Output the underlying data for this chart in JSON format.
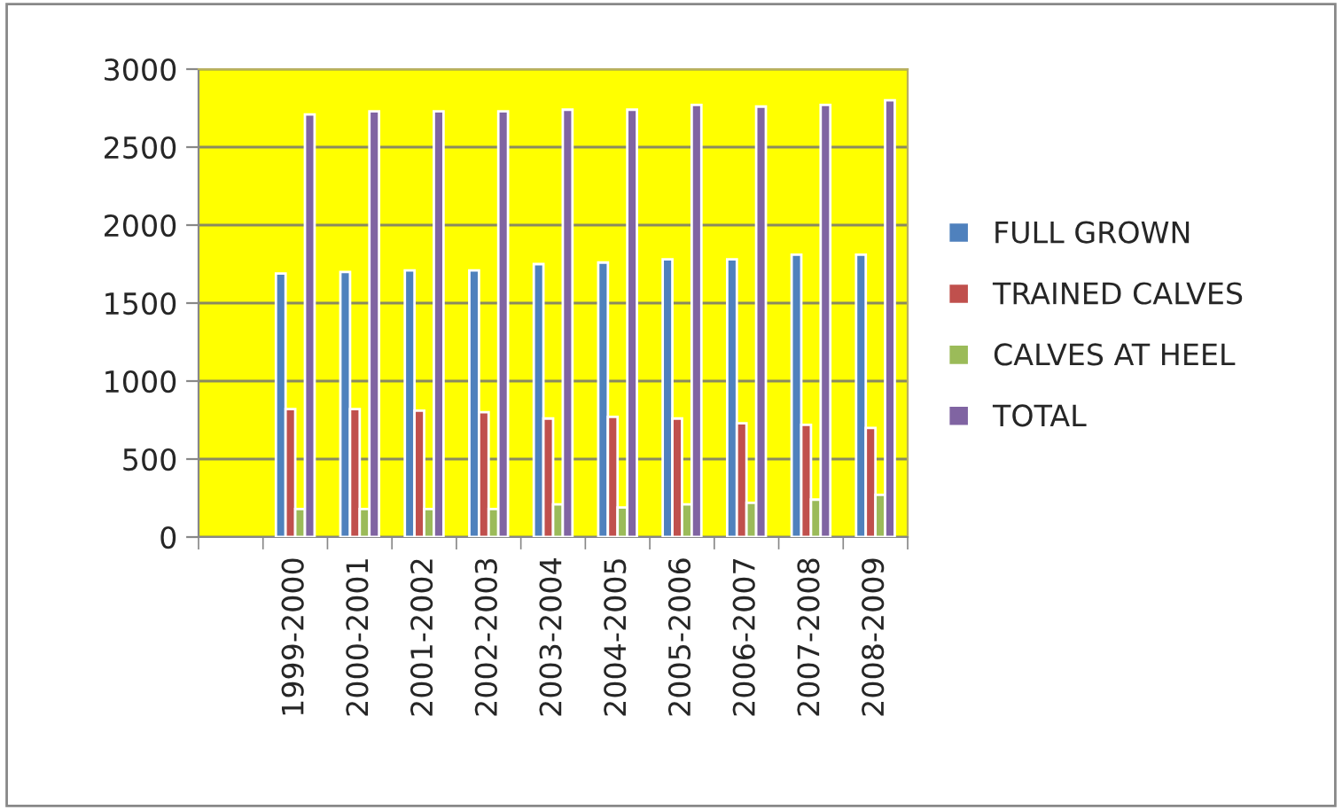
{
  "chart_data": {
    "type": "bar",
    "categories": [
      null,
      "1999-2000",
      "2000-2001",
      "2001-2002",
      "2002-2003",
      "2003-2004",
      "2004-2005",
      "2005-2006",
      "2006-2007",
      "2007-2008",
      "2008-2009"
    ],
    "series": [
      {
        "name": "FULL GROWN",
        "color": "#4f81bd",
        "values": [
          null,
          1690,
          1700,
          1710,
          1710,
          1750,
          1760,
          1780,
          1780,
          1810,
          1810
        ]
      },
      {
        "name": "TRAINED CALVES",
        "color": "#c0504d",
        "values": [
          null,
          820,
          820,
          810,
          800,
          760,
          770,
          760,
          730,
          720,
          700
        ]
      },
      {
        "name": "CALVES AT HEEL",
        "color": "#9bbb59",
        "values": [
          null,
          180,
          180,
          180,
          180,
          210,
          190,
          210,
          220,
          240,
          270
        ]
      },
      {
        "name": "TOTAL",
        "color": "#8064a2",
        "values": [
          null,
          2710,
          2730,
          2730,
          2730,
          2740,
          2740,
          2770,
          2760,
          2770,
          2800
        ]
      }
    ],
    "ylim": [
      0,
      3000
    ],
    "yticks": [
      0,
      500,
      1000,
      1500,
      2000,
      2500,
      3000
    ],
    "grid": "y",
    "legend": "right"
  }
}
